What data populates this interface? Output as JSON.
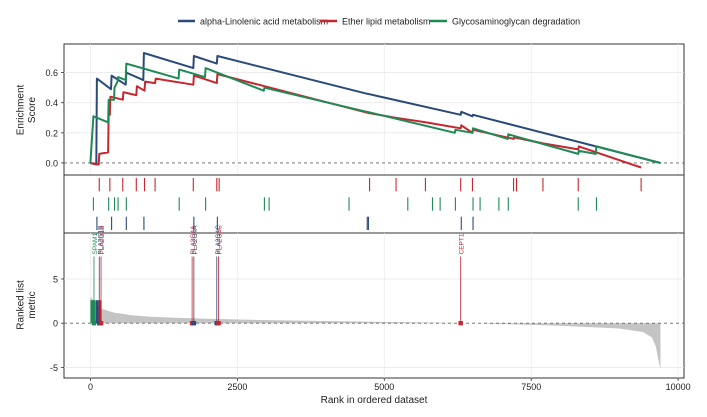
{
  "chart_data": {
    "type": "line",
    "legend": {
      "position": "top",
      "entries": [
        {
          "name": "alpha-Linolenic acid metabolism",
          "color": "#2b4a7a"
        },
        {
          "name": "Ether lipid metabolism",
          "color": "#c8262e"
        },
        {
          "name": "Glycosaminoglycan degradation",
          "color": "#1f8a55"
        }
      ]
    },
    "xlabel": "Rank in ordered dataset",
    "xlim": [
      -450,
      10100
    ],
    "xticks": [
      0,
      2500,
      5000,
      7500,
      10000
    ],
    "panel_es": {
      "ylabel": "Enrichment\nScore",
      "ylim": [
        -0.08,
        0.79
      ],
      "yticks": [
        "0.0",
        "0.2",
        "0.4",
        "0.6"
      ],
      "series": [
        {
          "name": "alpha-Linolenic acid metabolism",
          "color": "#2b4a7a",
          "points": [
            [
              0,
              0
            ],
            [
              100,
              -0.01
            ],
            [
              110,
              0.56
            ],
            [
              350,
              0.49
            ],
            [
              360,
              0.58
            ],
            [
              600,
              0.52
            ],
            [
              610,
              0.6
            ],
            [
              900,
              0.55
            ],
            [
              910,
              0.73
            ],
            [
              1750,
              0.63
            ],
            [
              1760,
              0.71
            ],
            [
              2150,
              0.66
            ],
            [
              2160,
              0.71
            ],
            [
              4700,
              0.46
            ],
            [
              4710,
              0.46
            ],
            [
              6300,
              0.32
            ],
            [
              6310,
              0.34
            ],
            [
              6500,
              0.31
            ],
            [
              6510,
              0.32
            ],
            [
              9700,
              0
            ]
          ]
        },
        {
          "name": "Ether lipid metabolism",
          "color": "#c8262e",
          "points": [
            [
              0,
              0
            ],
            [
              140,
              -0.01
            ],
            [
              150,
              0.06
            ],
            [
              300,
              0.07
            ],
            [
              310,
              0.34
            ],
            [
              330,
              0.32
            ],
            [
              340,
              0.44
            ],
            [
              550,
              0.42
            ],
            [
              560,
              0.47
            ],
            [
              780,
              0.45
            ],
            [
              790,
              0.51
            ],
            [
              920,
              0.48
            ],
            [
              930,
              0.54
            ],
            [
              1100,
              0.53
            ],
            [
              1110,
              0.56
            ],
            [
              1750,
              0.52
            ],
            [
              1760,
              0.58
            ],
            [
              2150,
              0.53
            ],
            [
              2160,
              0.59
            ],
            [
              4750,
              0.33
            ],
            [
              4760,
              0.33
            ],
            [
              5200,
              0.3
            ],
            [
              5700,
              0.27
            ],
            [
              6300,
              0.23
            ],
            [
              6310,
              0.25
            ],
            [
              6500,
              0.2
            ],
            [
              6510,
              0.22
            ],
            [
              7200,
              0.16
            ],
            [
              7210,
              0.17
            ],
            [
              7700,
              0.13
            ],
            [
              8300,
              0.09
            ],
            [
              8310,
              0.11
            ],
            [
              9370,
              -0.03
            ]
          ]
        },
        {
          "name": "Glycosaminoglycan degradation",
          "color": "#1f8a55",
          "points": [
            [
              0,
              0
            ],
            [
              50,
              0.31
            ],
            [
              300,
              0.27
            ],
            [
              310,
              0.42
            ],
            [
              400,
              0.42
            ],
            [
              410,
              0.5
            ],
            [
              460,
              0.54
            ],
            [
              470,
              0.57
            ],
            [
              600,
              0.55
            ],
            [
              610,
              0.66
            ],
            [
              1500,
              0.56
            ],
            [
              1510,
              0.62
            ],
            [
              1950,
              0.57
            ],
            [
              1960,
              0.63
            ],
            [
              2950,
              0.48
            ],
            [
              2960,
              0.5
            ],
            [
              4700,
              0.34
            ],
            [
              4710,
              0.34
            ],
            [
              6200,
              0.2
            ],
            [
              6210,
              0.22
            ],
            [
              6500,
              0.2
            ],
            [
              6510,
              0.23
            ],
            [
              7100,
              0.16
            ],
            [
              7110,
              0.19
            ],
            [
              8300,
              0.06
            ],
            [
              8310,
              0.08
            ],
            [
              8600,
              0.06
            ],
            [
              8610,
              0.11
            ],
            [
              9700,
              0
            ]
          ]
        }
      ]
    },
    "panel_hits": {
      "rows": [
        {
          "series": "Ether lipid metabolism",
          "color": "#c8262e",
          "ranks": [
            150,
            330,
            550,
            780,
            920,
            1100,
            1750,
            2150,
            2190,
            4750,
            5200,
            5700,
            6300,
            6500,
            7200,
            7250,
            7700,
            8300,
            9370
          ]
        },
        {
          "series": "Glycosaminoglycan degradation",
          "color": "#1f8a55",
          "ranks": [
            50,
            310,
            410,
            470,
            610,
            1510,
            1960,
            2960,
            3040,
            4400,
            5400,
            5820,
            5950,
            6210,
            6510,
            6630,
            6950,
            7110,
            8300,
            8610
          ]
        },
        {
          "series": "alpha-Linolenic acid metabolism",
          "color": "#2b4a7a",
          "ranks": [
            110,
            360,
            610,
            910,
            1760,
            2160,
            4710,
            4730,
            6310,
            6510
          ]
        }
      ]
    },
    "panel_rank": {
      "ylabel": "Ranked list\nmetric",
      "ylim": [
        -6.2,
        10.2
      ],
      "yticks": [
        -5,
        0,
        5
      ],
      "fill_color": "#c4c4c4",
      "profile": [
        [
          0,
          3
        ],
        [
          50,
          2.6
        ],
        [
          100,
          2.2
        ],
        [
          200,
          1.6
        ],
        [
          400,
          1.2
        ],
        [
          700,
          0.9
        ],
        [
          1000,
          0.75
        ],
        [
          1500,
          0.6
        ],
        [
          2000,
          0.5
        ],
        [
          3000,
          0.35
        ],
        [
          4000,
          0.25
        ],
        [
          5000,
          0.15
        ],
        [
          6000,
          0.05
        ],
        [
          6500,
          0
        ],
        [
          7000,
          -0.1
        ],
        [
          8000,
          -0.3
        ],
        [
          9000,
          -0.6
        ],
        [
          9400,
          -1
        ],
        [
          9550,
          -1.6
        ],
        [
          9620,
          -2.6
        ],
        [
          9660,
          -4
        ],
        [
          9700,
          -5.2
        ]
      ],
      "labels": [
        {
          "text": "SPAM1",
          "rank": 60,
          "color": "#1f8a55"
        },
        {
          "text": "PLA2G1B",
          "rank": 150,
          "color": "#2b4a7a"
        },
        {
          "text": "PLA2G1B",
          "rank": 180,
          "color": "#c8262e"
        },
        {
          "text": "PLA2G4A",
          "rank": 1730,
          "color": "#c8262e"
        },
        {
          "text": "PLA2G4A",
          "rank": 1760,
          "color": "#2b4a7a"
        },
        {
          "text": "PLA2G4C",
          "rank": 2150,
          "color": "#2b4a7a"
        },
        {
          "text": "PLA2G4C",
          "rank": 2180,
          "color": "#c8262e"
        },
        {
          "text": "CEPT1",
          "rank": 6300,
          "color": "#c8262e"
        }
      ]
    }
  }
}
